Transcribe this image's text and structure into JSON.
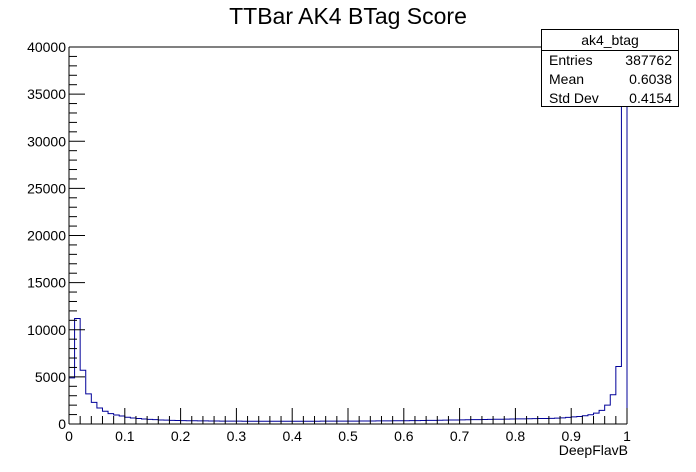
{
  "chart_data": {
    "type": "bar",
    "title": "TTBar AK4 BTag Score",
    "xlabel": "DeepFlavB",
    "ylabel": "",
    "xlim": [
      0,
      1
    ],
    "ylim": [
      0,
      40000
    ],
    "x_ticks": [
      "0",
      "0.1",
      "0.2",
      "0.3",
      "0.4",
      "0.5",
      "0.6",
      "0.7",
      "0.8",
      "0.9",
      "1"
    ],
    "y_ticks": [
      "0",
      "5000",
      "10000",
      "15000",
      "20000",
      "25000",
      "30000",
      "35000",
      "40000"
    ],
    "bin_width": 0.01,
    "bin_start": 0,
    "values": [
      4900,
      11200,
      5700,
      3200,
      2300,
      1700,
      1350,
      1100,
      950,
      850,
      720,
      640,
      580,
      530,
      490,
      460,
      430,
      410,
      390,
      375,
      360,
      350,
      340,
      330,
      325,
      320,
      315,
      310,
      305,
      300,
      300,
      295,
      295,
      290,
      290,
      290,
      290,
      290,
      290,
      290,
      290,
      290,
      295,
      295,
      295,
      300,
      300,
      300,
      305,
      305,
      310,
      310,
      315,
      320,
      320,
      325,
      330,
      335,
      340,
      345,
      350,
      355,
      360,
      370,
      380,
      390,
      400,
      410,
      420,
      430,
      440,
      450,
      460,
      470,
      480,
      490,
      500,
      510,
      520,
      530,
      540,
      550,
      560,
      570,
      580,
      590,
      600,
      620,
      650,
      700,
      750,
      800,
      880,
      980,
      1150,
      1450,
      2000,
      3100,
      6100,
      40000
    ],
    "series": [
      {
        "values_ref": "values",
        "color": "#000099"
      }
    ],
    "grid": false,
    "stats_box": {
      "name": "ak4_btag",
      "rows": [
        {
          "key": "Entries",
          "value": "387762"
        },
        {
          "key": "Mean",
          "value": "0.6038"
        },
        {
          "key": "Std Dev",
          "value": "0.4154"
        }
      ]
    }
  }
}
